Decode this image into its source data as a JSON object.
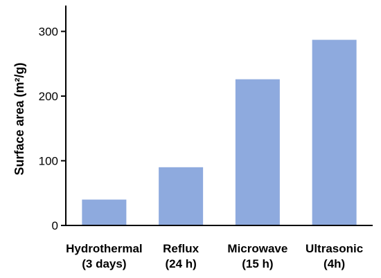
{
  "chart_data": {
    "type": "bar",
    "categories": [
      [
        "Hydrothermal",
        "(3 days)"
      ],
      [
        "Reflux",
        "(24 h)"
      ],
      [
        "Microwave",
        "(15 h)"
      ],
      [
        "Ultrasonic",
        "(4h)"
      ]
    ],
    "values": [
      40,
      90,
      226,
      287
    ],
    "ylabel": "Surface area (m²/g)",
    "xlabel": "",
    "title": "",
    "ylim": [
      0,
      340
    ],
    "yticks": [
      0,
      100,
      200,
      300
    ],
    "bar_color": "#8eaade",
    "axis_color": "#000000",
    "grid": false
  }
}
